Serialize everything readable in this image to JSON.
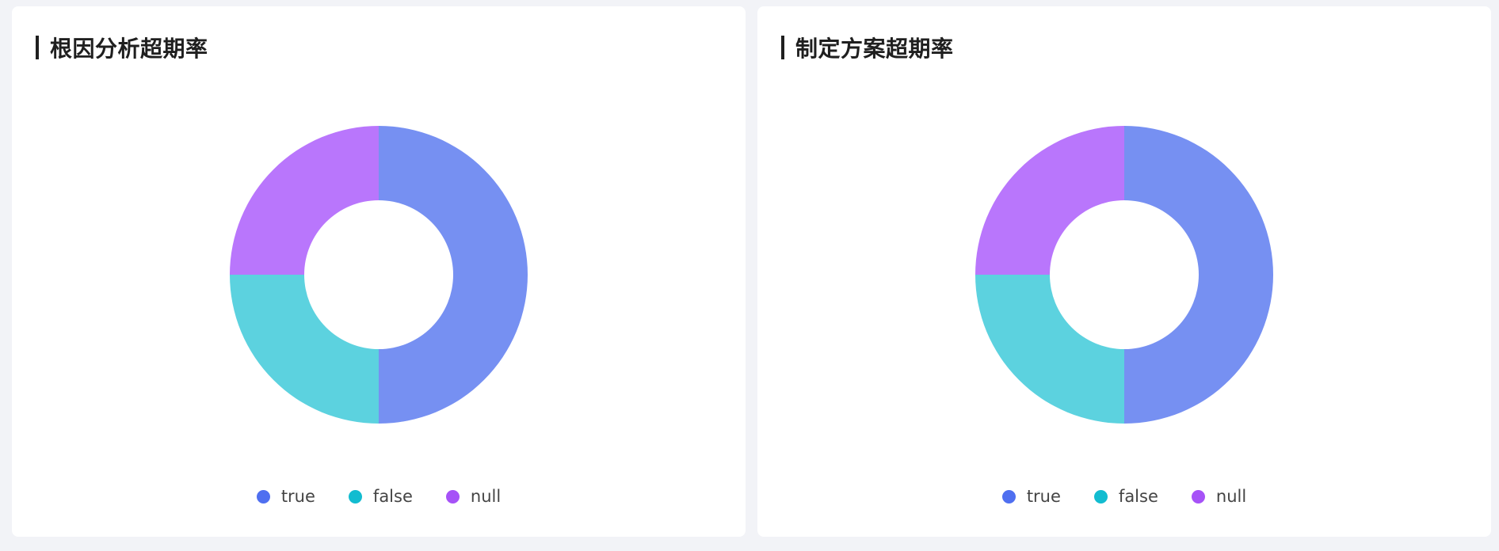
{
  "colors": {
    "page_background": "#f2f3f7",
    "card_background": "#ffffff",
    "title_text": "#1f1f1f",
    "legend_text": "#444444"
  },
  "chart_data": [
    {
      "type": "pie",
      "title": "根因分析超期率",
      "donut": true,
      "legend_placement": "bottom",
      "series": [
        {
          "name": "true",
          "value": 50,
          "color": "#7690f2",
          "legend_color": "#4f6ff0"
        },
        {
          "name": "false",
          "value": 25,
          "color": "#5cd2df",
          "legend_color": "#12bcd0"
        },
        {
          "name": "null",
          "value": 25,
          "color": "#b976fc",
          "legend_color": "#a652f7"
        }
      ]
    },
    {
      "type": "pie",
      "title": "制定方案超期率",
      "donut": true,
      "legend_placement": "bottom",
      "series": [
        {
          "name": "true",
          "value": 50,
          "color": "#7690f2",
          "legend_color": "#4f6ff0"
        },
        {
          "name": "false",
          "value": 25,
          "color": "#5cd2df",
          "legend_color": "#12bcd0"
        },
        {
          "name": "null",
          "value": 25,
          "color": "#b976fc",
          "legend_color": "#a652f7"
        }
      ]
    }
  ]
}
